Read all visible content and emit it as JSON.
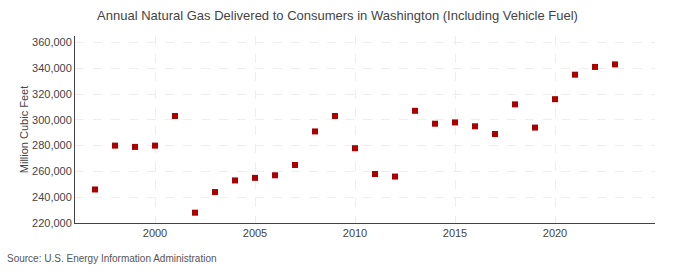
{
  "chart_data": {
    "type": "scatter",
    "title": "Annual Natural Gas Delivered to Consumers in Washington (Including Vehicle Fuel)",
    "ylabel": "Million Cubic Feet",
    "source": "Source: U.S. Energy Information Administration",
    "x": [
      1997,
      1998,
      1999,
      2000,
      2001,
      2002,
      2003,
      2004,
      2005,
      2006,
      2007,
      2008,
      2009,
      2010,
      2011,
      2012,
      2013,
      2014,
      2015,
      2016,
      2017,
      2018,
      2019,
      2020,
      2021,
      2022,
      2023
    ],
    "values": [
      246000,
      280000,
      279000,
      280000,
      303000,
      228000,
      244000,
      253000,
      255000,
      257000,
      265000,
      291000,
      303000,
      278000,
      258000,
      256000,
      307000,
      297000,
      298000,
      295000,
      289000,
      312000,
      294000,
      316000,
      335000,
      341000,
      343000
    ],
    "color": "#aa0000",
    "marker": "square",
    "xlim": [
      1996,
      2025
    ],
    "ylim": [
      220000,
      365000
    ],
    "xticks": [
      2000,
      2005,
      2010,
      2015,
      2020
    ],
    "yticks": [
      {
        "value": 220000,
        "label": "220,000"
      },
      {
        "value": 240000,
        "label": "240,000"
      },
      {
        "value": 260000,
        "label": "260,000"
      },
      {
        "value": 280000,
        "label": "280,000"
      },
      {
        "value": 300000,
        "label": "300,000"
      },
      {
        "value": 320000,
        "label": "320,000"
      },
      {
        "value": 340000,
        "label": "340,000"
      },
      {
        "value": 360000,
        "label": "360,000"
      }
    ],
    "grid": true
  }
}
